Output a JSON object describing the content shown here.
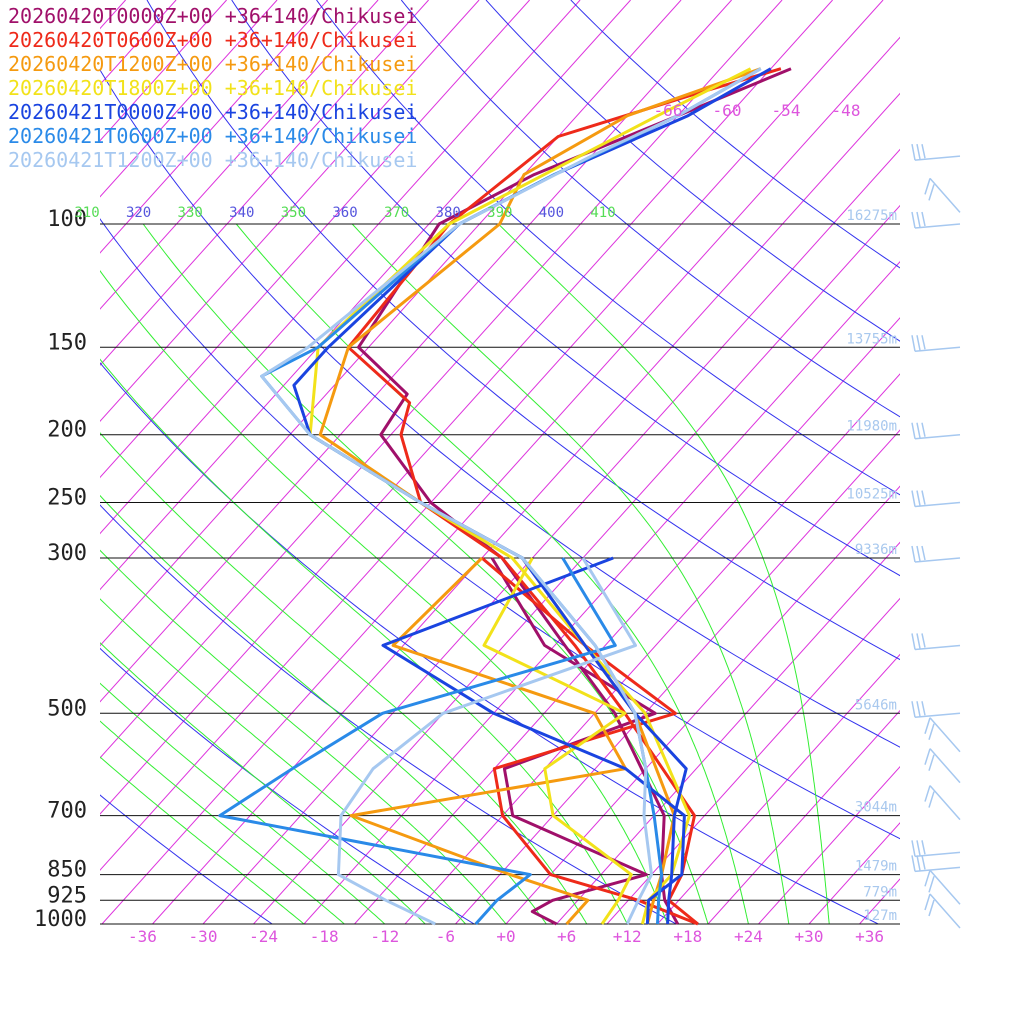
{
  "legend": [
    {
      "label": "20260420T0000Z+00 +36+140/Chikusei",
      "color": "#a0106a"
    },
    {
      "label": "20260420T0600Z+00 +36+140/Chikusei",
      "color": "#ee2a1a"
    },
    {
      "label": "20260420T1200Z+00 +36+140/Chikusei",
      "color": "#f59a10"
    },
    {
      "label": "20260420T1800Z+00 +36+140/Chikusei",
      "color": "#f2e21a"
    },
    {
      "label": "20260421T0000Z+00 +36+140/Chikusei",
      "color": "#1a44e0"
    },
    {
      "label": "20260421T0600Z+00 +36+140/Chikusei",
      "color": "#2a8ae8"
    },
    {
      "label": "20260421T1200Z+00 +36+140/Chikusei",
      "color": "#a6c8f0"
    }
  ],
  "chart_data": {
    "type": "line",
    "subtype": "skew-T log-p sounding",
    "x_axis": {
      "label": "",
      "unit": "°C",
      "ticks": [
        "-36",
        "-30",
        "-24",
        "-18",
        "-12",
        "-6",
        "+0",
        "+6",
        "+12",
        "+18",
        "+24",
        "+30",
        "+36"
      ],
      "range": [
        -40,
        40
      ]
    },
    "y_axis": {
      "label": "",
      "unit": "hPa",
      "scale": "log",
      "ticks": [
        "100",
        "150",
        "200",
        "250",
        "300",
        "500",
        "700",
        "850",
        "925",
        "1000"
      ],
      "range": [
        1000,
        100
      ]
    },
    "upper_temp_labels": [
      "-66",
      "-60",
      "-54",
      "-48"
    ],
    "theta_labels": [
      {
        "text": "310",
        "color": "#55dd55"
      },
      {
        "text": "320",
        "color": "#5555dd"
      },
      {
        "text": "330",
        "color": "#55dd55"
      },
      {
        "text": "340",
        "color": "#5555dd"
      },
      {
        "text": "350",
        "color": "#55dd55"
      },
      {
        "text": "360",
        "color": "#5555dd"
      },
      {
        "text": "370",
        "color": "#55dd55"
      },
      {
        "text": "380",
        "color": "#5555dd"
      },
      {
        "text": "390",
        "color": "#55dd55"
      },
      {
        "text": "400",
        "color": "#5555dd"
      },
      {
        "text": "410",
        "color": "#55dd55"
      }
    ],
    "height_labels": [
      {
        "p": 100,
        "text": "16275m"
      },
      {
        "p": 150,
        "text": "13755m"
      },
      {
        "p": 200,
        "text": "11980m"
      },
      {
        "p": 250,
        "text": "10525m"
      },
      {
        "p": 300,
        "text": "9336m"
      },
      {
        "p": 500,
        "text": "5646m"
      },
      {
        "p": 700,
        "text": "3044m"
      },
      {
        "p": 850,
        "text": "1479m"
      },
      {
        "p": 925,
        "text": "779m"
      },
      {
        "p": 1000,
        "text": "127m"
      }
    ],
    "colors": {
      "isotherm": "#dd33dd",
      "dry_adiabat": "#3333ee",
      "moist_adiabat": "#33ee33",
      "isobar": "#111111",
      "wind_barb": "#a6c8f0"
    },
    "wind_barbs": [
      {
        "p": 80,
        "kind": "long"
      },
      {
        "p": 95,
        "kind": "flag"
      },
      {
        "p": 100,
        "kind": "long"
      },
      {
        "p": 150,
        "kind": "long"
      },
      {
        "p": 200,
        "kind": "long"
      },
      {
        "p": 250,
        "kind": "long"
      },
      {
        "p": 300,
        "kind": "long"
      },
      {
        "p": 400,
        "kind": "long"
      },
      {
        "p": 500,
        "kind": "long"
      },
      {
        "p": 560,
        "kind": "flag"
      },
      {
        "p": 620,
        "kind": "flag"
      },
      {
        "p": 700,
        "kind": "flag"
      },
      {
        "p": 790,
        "kind": "long"
      },
      {
        "p": 830,
        "kind": "long"
      },
      {
        "p": 925,
        "kind": "flag"
      },
      {
        "p": 1000,
        "kind": "flag"
      }
    ],
    "series": [
      {
        "name": "20260420T0000Z+00 +36+140/Chikusei",
        "color": "#a0106a",
        "temperature": [
          [
            1000,
            17
          ],
          [
            925,
            13.6
          ],
          [
            850,
            11
          ],
          [
            700,
            6
          ],
          [
            500,
            -8
          ],
          [
            400,
            -19
          ],
          [
            300,
            -33
          ],
          [
            250,
            -45
          ],
          [
            200,
            -56
          ],
          [
            175,
            -57
          ],
          [
            150,
            -66
          ],
          [
            100,
            -69
          ],
          [
            85,
            -64
          ],
          [
            70,
            -55
          ],
          [
            60,
            -48
          ]
        ],
        "dewpoint": [
          [
            1000,
            5
          ],
          [
            960,
            1.5
          ],
          [
            925,
            2.5
          ],
          [
            850,
            9.5
          ],
          [
            700,
            -9
          ],
          [
            600,
            -14
          ],
          [
            500,
            -4
          ],
          [
            400,
            -21
          ],
          [
            300,
            -34
          ]
        ]
      },
      {
        "name": "20260420T0600Z+00 +36+140/Chikusei",
        "color": "#ee2a1a",
        "temperature": [
          [
            1000,
            19
          ],
          [
            925,
            14
          ],
          [
            850,
            13
          ],
          [
            700,
            9
          ],
          [
            500,
            -7
          ],
          [
            400,
            -18
          ],
          [
            300,
            -33
          ],
          [
            250,
            -46
          ],
          [
            200,
            -54
          ],
          [
            180,
            -56
          ],
          [
            150,
            -67
          ],
          [
            100,
            -68
          ],
          [
            75,
            -65
          ],
          [
            65,
            -55
          ],
          [
            60,
            -49
          ]
        ],
        "dewpoint": [
          [
            1000,
            19
          ],
          [
            925,
            11
          ],
          [
            850,
            0
          ],
          [
            700,
            -10
          ],
          [
            600,
            -15
          ],
          [
            500,
            -2
          ],
          [
            400,
            -17
          ],
          [
            300,
            -35
          ]
        ]
      },
      {
        "name": "20260420T1200Z+00 +36+140/Chikusei",
        "color": "#f59a10",
        "temperature": [
          [
            1000,
            14
          ],
          [
            925,
            12.5
          ],
          [
            850,
            11
          ],
          [
            700,
            7
          ],
          [
            500,
            -6
          ],
          [
            400,
            -17
          ],
          [
            300,
            -31
          ],
          [
            250,
            -46
          ],
          [
            200,
            -62
          ],
          [
            150,
            -67
          ],
          [
            100,
            -63
          ],
          [
            85,
            -65
          ],
          [
            70,
            -60
          ],
          [
            60,
            -51
          ]
        ],
        "dewpoint": [
          [
            1000,
            6
          ],
          [
            925,
            6
          ],
          [
            850,
            -4
          ],
          [
            700,
            -25
          ],
          [
            600,
            -2
          ],
          [
            500,
            -10
          ],
          [
            400,
            -36
          ],
          [
            300,
            -35
          ]
        ]
      },
      {
        "name": "20260420T1800Z+00 +36+140/Chikusei",
        "color": "#f2e21a",
        "temperature": [
          [
            1000,
            13.5
          ],
          [
            925,
            12
          ],
          [
            850,
            12
          ],
          [
            700,
            8.5
          ],
          [
            500,
            -5
          ],
          [
            400,
            -17
          ],
          [
            300,
            -32
          ],
          [
            250,
            -46
          ],
          [
            200,
            -63
          ],
          [
            150,
            -70
          ],
          [
            100,
            -68
          ],
          [
            85,
            -63
          ],
          [
            70,
            -57
          ],
          [
            60,
            -52
          ]
        ],
        "dewpoint": [
          [
            1000,
            9.5
          ],
          [
            925,
            9
          ],
          [
            850,
            8
          ],
          [
            700,
            -5
          ],
          [
            600,
            -10
          ],
          [
            500,
            -7
          ],
          [
            400,
            -27
          ],
          [
            300,
            -30
          ]
        ]
      },
      {
        "name": "20260421T0000Z+00 +36+140/Chikusei",
        "color": "#1a44e0",
        "temperature": [
          [
            1000,
            16
          ],
          [
            925,
            14
          ],
          [
            850,
            12
          ],
          [
            700,
            7
          ],
          [
            600,
            4
          ],
          [
            500,
            -6
          ],
          [
            400,
            -17
          ],
          [
            300,
            -31
          ],
          [
            250,
            -46
          ],
          [
            200,
            -63
          ],
          [
            170,
            -69
          ],
          [
            150,
            -69
          ],
          [
            100,
            -67
          ],
          [
            85,
            -62
          ],
          [
            70,
            -54
          ],
          [
            60,
            -50
          ]
        ],
        "dewpoint": [
          [
            1000,
            14
          ],
          [
            925,
            12
          ],
          [
            850,
            13
          ],
          [
            700,
            8
          ],
          [
            600,
            -2
          ],
          [
            500,
            -20
          ],
          [
            400,
            -37
          ],
          [
            300,
            -22
          ]
        ]
      },
      {
        "name": "20260421T0600Z+00 +36+140/Chikusei",
        "color": "#2a8ae8",
        "temperature": [
          [
            1000,
            15
          ],
          [
            925,
            13
          ],
          [
            850,
            11
          ],
          [
            700,
            5
          ],
          [
            600,
            0
          ],
          [
            500,
            -6
          ],
          [
            400,
            -16
          ],
          [
            300,
            -31
          ],
          [
            250,
            -46
          ],
          [
            200,
            -63
          ],
          [
            165,
            -73
          ],
          [
            150,
            -70
          ],
          [
            100,
            -67
          ],
          [
            85,
            -62
          ],
          [
            70,
            -55
          ],
          [
            60,
            -51
          ]
        ],
        "dewpoint": [
          [
            1000,
            -3
          ],
          [
            925,
            -3
          ],
          [
            850,
            -2
          ],
          [
            700,
            -38
          ],
          [
            600,
            -35
          ],
          [
            500,
            -31
          ],
          [
            400,
            -14
          ],
          [
            300,
            -27
          ]
        ]
      },
      {
        "name": "20260421T1200Z+00 +36+140/Chikusei",
        "color": "#a6c8f0",
        "temperature": [
          [
            1000,
            12
          ],
          [
            925,
            11
          ],
          [
            850,
            10
          ],
          [
            700,
            4
          ],
          [
            600,
            0
          ],
          [
            500,
            -6
          ],
          [
            400,
            -16
          ],
          [
            300,
            -31
          ],
          [
            250,
            -46
          ],
          [
            200,
            -63
          ],
          [
            165,
            -73
          ],
          [
            150,
            -71
          ],
          [
            100,
            -67
          ],
          [
            80,
            -60
          ],
          [
            70,
            -55
          ],
          [
            60,
            -51
          ]
        ],
        "dewpoint": [
          [
            1000,
            -7
          ],
          [
            925,
            -14
          ],
          [
            850,
            -21
          ],
          [
            700,
            -26
          ],
          [
            600,
            -27
          ],
          [
            500,
            -25
          ],
          [
            400,
            -12
          ],
          [
            300,
            -25
          ]
        ]
      }
    ]
  }
}
